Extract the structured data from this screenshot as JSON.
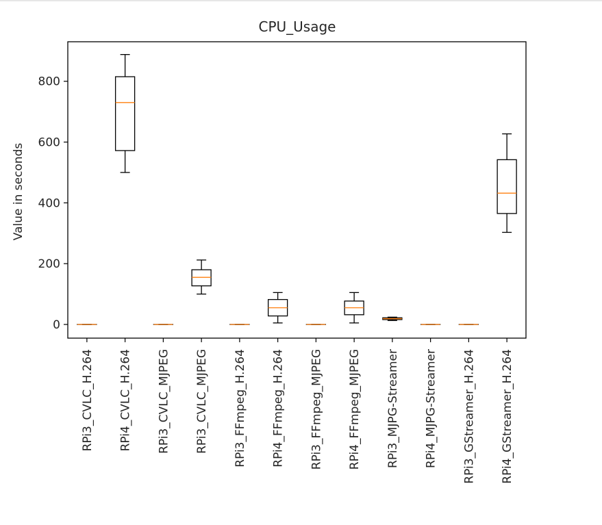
{
  "chart_data": {
    "type": "boxplot",
    "title": "CPU_Usage",
    "xlabel": "",
    "ylabel": "Value in seconds",
    "ylim": [
      -45,
      930
    ],
    "yticks": [
      0,
      200,
      400,
      600,
      800
    ],
    "grid": false,
    "colors": {
      "box": "#000000",
      "median": "#ff7f0e"
    },
    "categories": [
      "RPi3_CVLC_H.264",
      "RPi4_CVLC_H.264",
      "RPi3_CVLC_MJPEG",
      "RPi3_CVLC_MJPEG",
      "RPi3_FFmpeg_H.264",
      "RPi4_FFmpeg_H.264",
      "RPi3_FFmpeg_MJPEG",
      "RPi4_FFmpeg_MJPEG",
      "RPi3_MJPG-Streamer",
      "RPi4_MJPG-Streamer",
      "RPi3_GStreamer_H.264",
      "RPi4_GStreamer_H.264"
    ],
    "boxes": [
      {
        "whislo": 0,
        "q1": 0,
        "med": 0,
        "q3": 0,
        "whishi": 0
      },
      {
        "whislo": 500,
        "q1": 572,
        "med": 730,
        "q3": 815,
        "whishi": 888
      },
      {
        "whislo": 0,
        "q1": 0,
        "med": 0,
        "q3": 0,
        "whishi": 0
      },
      {
        "whislo": 100,
        "q1": 127,
        "med": 155,
        "q3": 180,
        "whishi": 212
      },
      {
        "whislo": 0,
        "q1": 0,
        "med": 0,
        "q3": 0,
        "whishi": 0
      },
      {
        "whislo": 5,
        "q1": 28,
        "med": 55,
        "q3": 82,
        "whishi": 105
      },
      {
        "whislo": 0,
        "q1": 0,
        "med": 0,
        "q3": 0,
        "whishi": 0
      },
      {
        "whislo": 5,
        "q1": 32,
        "med": 55,
        "q3": 77,
        "whishi": 105
      },
      {
        "whislo": 13,
        "q1": 16,
        "med": 19,
        "q3": 22,
        "whishi": 24
      },
      {
        "whislo": 0,
        "q1": 0,
        "med": 0,
        "q3": 0,
        "whishi": 0
      },
      {
        "whislo": 0,
        "q1": 0,
        "med": 0,
        "q3": 0,
        "whishi": 0
      },
      {
        "whislo": 303,
        "q1": 365,
        "med": 432,
        "q3": 542,
        "whishi": 627
      }
    ]
  }
}
